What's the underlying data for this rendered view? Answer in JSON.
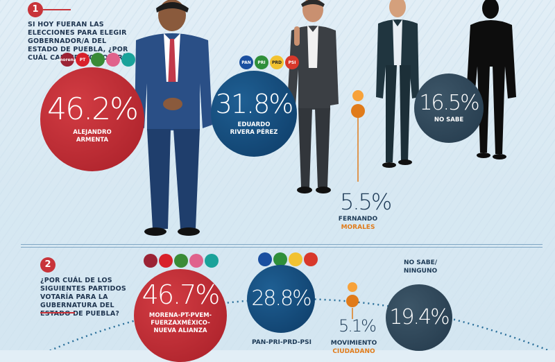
{
  "colors": {
    "accent": "#c8343a",
    "navy": "#0d3b66",
    "slate": "#23394b",
    "orange": "#e07b1a"
  },
  "section1": {
    "number": "1",
    "question": "SI HOY FUERAN LAS ELECCIONES PARA ELEGIR GOBERNADOR/A DEL ESTADO DE PUEBLA, ¿POR CUÁL CANDIDATO VOTARÍA?",
    "parties_armenta": [
      "morena",
      "PT",
      "PVEM",
      "FUERZA MÉXICO",
      "NA"
    ],
    "parties_rivera": [
      "PAN",
      "PRI",
      "PRD",
      "PSI"
    ],
    "results": [
      {
        "pct": "46.2%",
        "name_l1": "ALEJANDRO",
        "name_l2": "ARMENTA"
      },
      {
        "pct": "31.8%",
        "name_l1": "EDUARDO",
        "name_l2": "RIVERA PÉREZ"
      },
      {
        "pct": "5.5%",
        "name_l1": "FERNANDO",
        "name_l2": "MORALES"
      },
      {
        "pct": "16.5%",
        "name_l1": "NO SABE",
        "name_l2": ""
      }
    ]
  },
  "section2": {
    "number": "2",
    "question": "¿POR CUÁL DE LOS SIGUIENTES PARTIDOS VOTARÍA PARA LA GUBERNATURA DEL ESTADO DE PUEBLA?",
    "results": [
      {
        "pct": "46.7%",
        "label_l1": "MORENA-PT-PVEM-",
        "label_l2": "FUERZAXMÉXICO-",
        "label_l3": "NUEVA ALIANZA"
      },
      {
        "pct": "28.8%",
        "label_l1": "PAN-PRI-PRD-PSI"
      },
      {
        "pct": "5.1%",
        "label_l1": "MOVIMIENTO",
        "label_l2": "CIUDADANO"
      },
      {
        "pct": "19.4%",
        "label_l1": "NO SABE/",
        "label_l2": "NINGUNO"
      }
    ]
  },
  "chart_data": [
    {
      "type": "bar",
      "title": "SI HOY FUERAN LAS ELECCIONES PARA ELEGIR GOBERNADOR/A DEL ESTADO DE PUEBLA, ¿POR CUÁL CANDIDATO VOTARÍA?",
      "categories": [
        "ALEJANDRO ARMENTA",
        "EDUARDO RIVERA PÉREZ",
        "FERNANDO MORALES",
        "NO SABE"
      ],
      "values": [
        46.2,
        31.8,
        5.5,
        16.5
      ],
      "unit": "%"
    },
    {
      "type": "bar",
      "title": "¿POR CUÁL DE LOS SIGUIENTES PARTIDOS VOTARÍA PARA LA GUBERNATURA DEL ESTADO DE PUEBLA?",
      "categories": [
        "MORENA-PT-PVEM-FUERZAXMÉXICO-NUEVA ALIANZA",
        "PAN-PRI-PRD-PSI",
        "MOVIMIENTO CIUDADANO",
        "NO SABE/NINGUNO"
      ],
      "values": [
        46.7,
        28.8,
        5.1,
        19.4
      ],
      "unit": "%"
    }
  ]
}
